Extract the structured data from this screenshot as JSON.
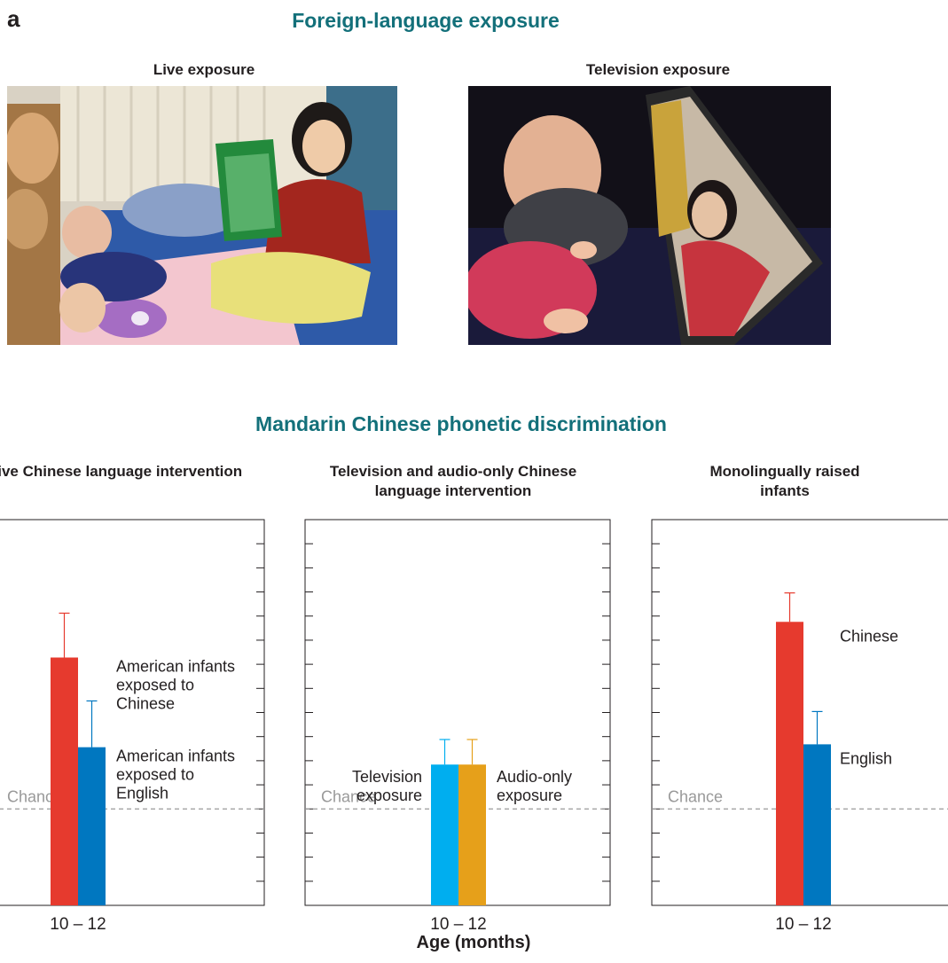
{
  "panel_label": "a",
  "exposure_section": {
    "title": "Foreign-language exposure",
    "photos": [
      {
        "label": "Live exposure"
      },
      {
        "label": "Television exposure"
      }
    ]
  },
  "colors": {
    "title": "#13707a",
    "red": "#e63a2e",
    "blue": "#0077c0",
    "cyan": "#00aeef",
    "orange": "#e6a01a",
    "chance": "#999999"
  },
  "chart_section_title": "Mandarin Chinese phonetic discrimination",
  "x_axis_title": "Age (months)",
  "chart_data": [
    {
      "type": "bar",
      "title": "Live Chinese language intervention",
      "categories": [
        "10 – 12"
      ],
      "series": [
        {
          "name": "American infants exposed to Chinese",
          "values": [
            65.7
          ],
          "error": [
            4.6
          ],
          "color": "#e63a2e"
        },
        {
          "name": "American infants exposed to English",
          "values": [
            56.4
          ],
          "error": [
            4.8
          ],
          "color": "#0077c0"
        }
      ],
      "reference_line": {
        "label": "Chance",
        "value": 50
      },
      "ylim": [
        40,
        80
      ],
      "grid": false
    },
    {
      "type": "bar",
      "title": "Television and audio-only Chinese language intervention",
      "categories": [
        "10 – 12"
      ],
      "series": [
        {
          "name": "Television exposure",
          "values": [
            54.6
          ],
          "error": [
            2.6
          ],
          "color": "#00aeef"
        },
        {
          "name": "Audio-only exposure",
          "values": [
            54.6
          ],
          "error": [
            2.6
          ],
          "color": "#e6a01a"
        }
      ],
      "reference_line": {
        "label": "Chance",
        "value": 50
      },
      "ylim": [
        40,
        80
      ],
      "grid": false
    },
    {
      "type": "bar",
      "title": "Monolingually raised infants",
      "categories": [
        "10 – 12"
      ],
      "series": [
        {
          "name": "Chinese",
          "values": [
            69.4
          ],
          "error": [
            3.0
          ],
          "color": "#e63a2e"
        },
        {
          "name": "English",
          "values": [
            56.7
          ],
          "error": [
            3.4
          ],
          "color": "#0077c0"
        }
      ],
      "reference_line": {
        "label": "Chance",
        "value": 50
      },
      "ylim": [
        40,
        80
      ],
      "grid": false
    }
  ]
}
